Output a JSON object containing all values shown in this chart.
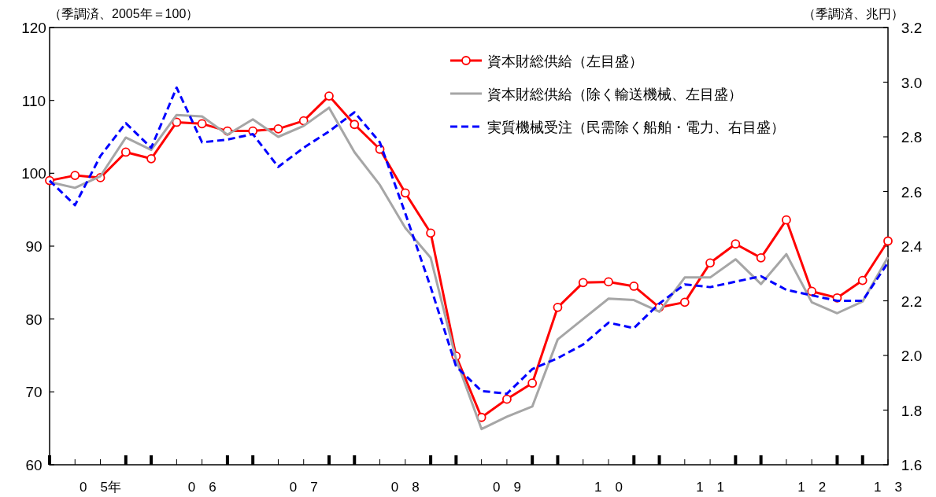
{
  "chart_data": {
    "type": "line",
    "ylabel": "（季調済、2005年＝100）",
    "y2label": "（季調済、兆円）",
    "categories": [
      null,
      null,
      "0　5年",
      null,
      null,
      null,
      "0　6",
      null,
      null,
      null,
      "0　7",
      null,
      null,
      null,
      "0　8",
      null,
      null,
      null,
      "0　9",
      null,
      null,
      null,
      "1　0",
      null,
      null,
      null,
      "1　1",
      null,
      null,
      null,
      "1　2",
      null,
      null,
      "1　3"
    ],
    "ylim": [
      60,
      120
    ],
    "yticks": [
      60,
      70,
      80,
      90,
      100,
      110,
      120
    ],
    "y2lim": [
      1.6,
      3.2
    ],
    "y2ticks": [
      1.6,
      1.8,
      {
        "value": 2.0,
        "label": "2.0"
      },
      2.2,
      2.4,
      2.6,
      2.8,
      {
        "value": 3.0,
        "label": "3.0"
      },
      3.2
    ],
    "legend": "top right",
    "grid": false,
    "series": [
      {
        "name": "資本財総供給（左目盛）",
        "color": "#ff0000",
        "marker": "circle",
        "line_style": "solid",
        "values": [
          99.0,
          99.7,
          99.4,
          102.9,
          102.0,
          107.0,
          106.8,
          105.8,
          105.8,
          106.1,
          107.2,
          110.6,
          106.7,
          103.3,
          97.3,
          91.8,
          74.9,
          66.5,
          69.0,
          71.2,
          81.6,
          85.0,
          85.1,
          84.5,
          81.6,
          82.3,
          87.7,
          90.3,
          88.4,
          93.6,
          83.8,
          82.9,
          85.3,
          90.7
        ]
      },
      {
        "name": "資本財総供給（除く輸送機械、左目盛）",
        "color": "#a6a6a6",
        "marker": "none",
        "line_style": "solid",
        "values": [
          98.8,
          98.0,
          99.6,
          104.9,
          103.2,
          108.0,
          107.8,
          105.3,
          107.4,
          105.0,
          106.5,
          109.0,
          102.9,
          98.4,
          92.5,
          88.4,
          74.5,
          64.9,
          66.6,
          68.0,
          77.2,
          80.0,
          82.8,
          82.6,
          81.0,
          85.7,
          85.7,
          88.2,
          84.8,
          88.9,
          82.3,
          80.8,
          82.4,
          88.5
        ]
      },
      {
        "name": "実質機械受注（民需除く船舶・電力、右目盛）",
        "color": "#0000ff",
        "marker": "none",
        "line_style": "dashed",
        "axis": "y2",
        "values": [
          2.64,
          2.55,
          2.73,
          2.85,
          2.76,
          2.98,
          2.78,
          2.79,
          2.81,
          2.69,
          2.76,
          2.82,
          2.89,
          2.78,
          2.52,
          2.25,
          1.96,
          1.87,
          1.86,
          1.95,
          1.99,
          2.04,
          2.12,
          2.1,
          2.19,
          2.26,
          2.25,
          2.27,
          2.29,
          2.24,
          2.22,
          2.2,
          2.2,
          2.34
        ]
      }
    ]
  }
}
